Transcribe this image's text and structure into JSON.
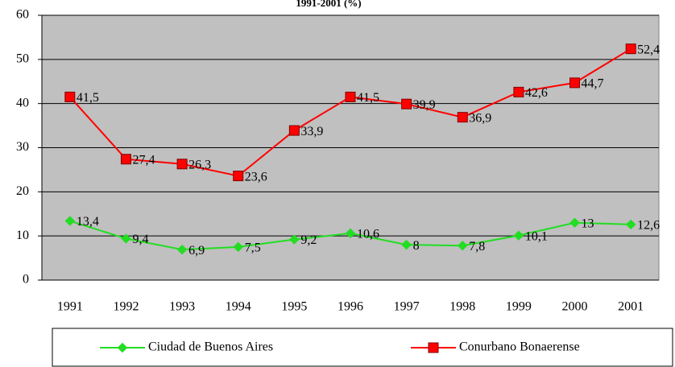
{
  "chart_data": {
    "type": "line",
    "title": "1991-2001 (%)",
    "categories": [
      "1991",
      "1992",
      "1993",
      "1994",
      "1995",
      "1996",
      "1997",
      "1998",
      "1999",
      "2000",
      "2001"
    ],
    "series": [
      {
        "name": "Ciudad de Buenos Aires",
        "color": "#22dd22",
        "marker": "diamond",
        "values": [
          13.4,
          9.4,
          6.9,
          7.5,
          9.2,
          10.6,
          8,
          7.8,
          10.1,
          13,
          12.6
        ],
        "value_labels": [
          "13,4",
          "9,4",
          "6,9",
          "7,5",
          "9,2",
          "10,6",
          "8",
          "7,8",
          "10,1",
          "13",
          "12,6"
        ]
      },
      {
        "name": "Conurbano Bonaerense",
        "color": "#ff0000",
        "marker": "square",
        "values": [
          41.5,
          27.4,
          26.3,
          23.6,
          33.9,
          41.5,
          39.9,
          36.9,
          42.6,
          44.7,
          52.4
        ],
        "value_labels": [
          "41,5",
          "27,4",
          "26,3",
          "23,6",
          "33,9",
          "41,5",
          "39,9",
          "36,9",
          "42,6",
          "44,7",
          "52,4"
        ]
      }
    ],
    "ylim": [
      0,
      60
    ],
    "yticks": [
      0,
      10,
      20,
      30,
      40,
      50,
      60
    ],
    "grid": true
  }
}
